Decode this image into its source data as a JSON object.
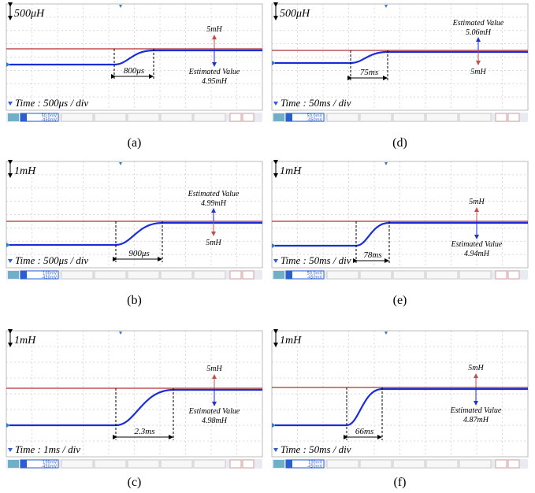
{
  "panels": [
    {
      "caption": "(a)",
      "scale": "500μH",
      "time": "Time : 500μs / div",
      "reference": "5mH",
      "estimate_label": "Estimated Value",
      "estimate": "4.95mH",
      "interval": "800μs",
      "channel": [
        "50.0mV",
        "-450mV"
      ]
    },
    {
      "caption": "(b)",
      "scale": "1mH",
      "time": "Time : 500μs / div",
      "reference": "5mH",
      "estimate_label": "Estimated Value",
      "estimate": "4.99mH",
      "interval": "900μs",
      "channel": [
        "100mV",
        "-450mV"
      ]
    },
    {
      "caption": "(c)",
      "scale": "1mH",
      "time": "Time : 1ms / div",
      "reference": "5mH",
      "estimate_label": "Estimated Value",
      "estimate": "4.98mH",
      "interval": "2.3ms",
      "channel": [
        "100mV",
        "-450mV"
      ]
    },
    {
      "caption": "(d)",
      "scale": "500μH",
      "time": "Time : 50ms / div",
      "reference": "5mH",
      "estimate_label": "Estimated Value",
      "estimate": "5.06mH",
      "interval": "75ms",
      "channel": [
        "50.0mV",
        "-450mV"
      ]
    },
    {
      "caption": "(e)",
      "scale": "1mH",
      "time": "Time : 50ms / div",
      "reference": "5mH",
      "estimate_label": "Estimated Value",
      "estimate": "4.94mH",
      "interval": "78ms",
      "channel": [
        "50.0mV",
        "-450mV"
      ]
    },
    {
      "caption": "(f)",
      "scale": "1mH",
      "time": "Time : 50ms / div",
      "reference": "5mH",
      "estimate_label": "Estimated Value",
      "estimate": "4.87mH",
      "interval": "66ms",
      "channel": [
        "100mV",
        "-450mV"
      ]
    }
  ]
}
